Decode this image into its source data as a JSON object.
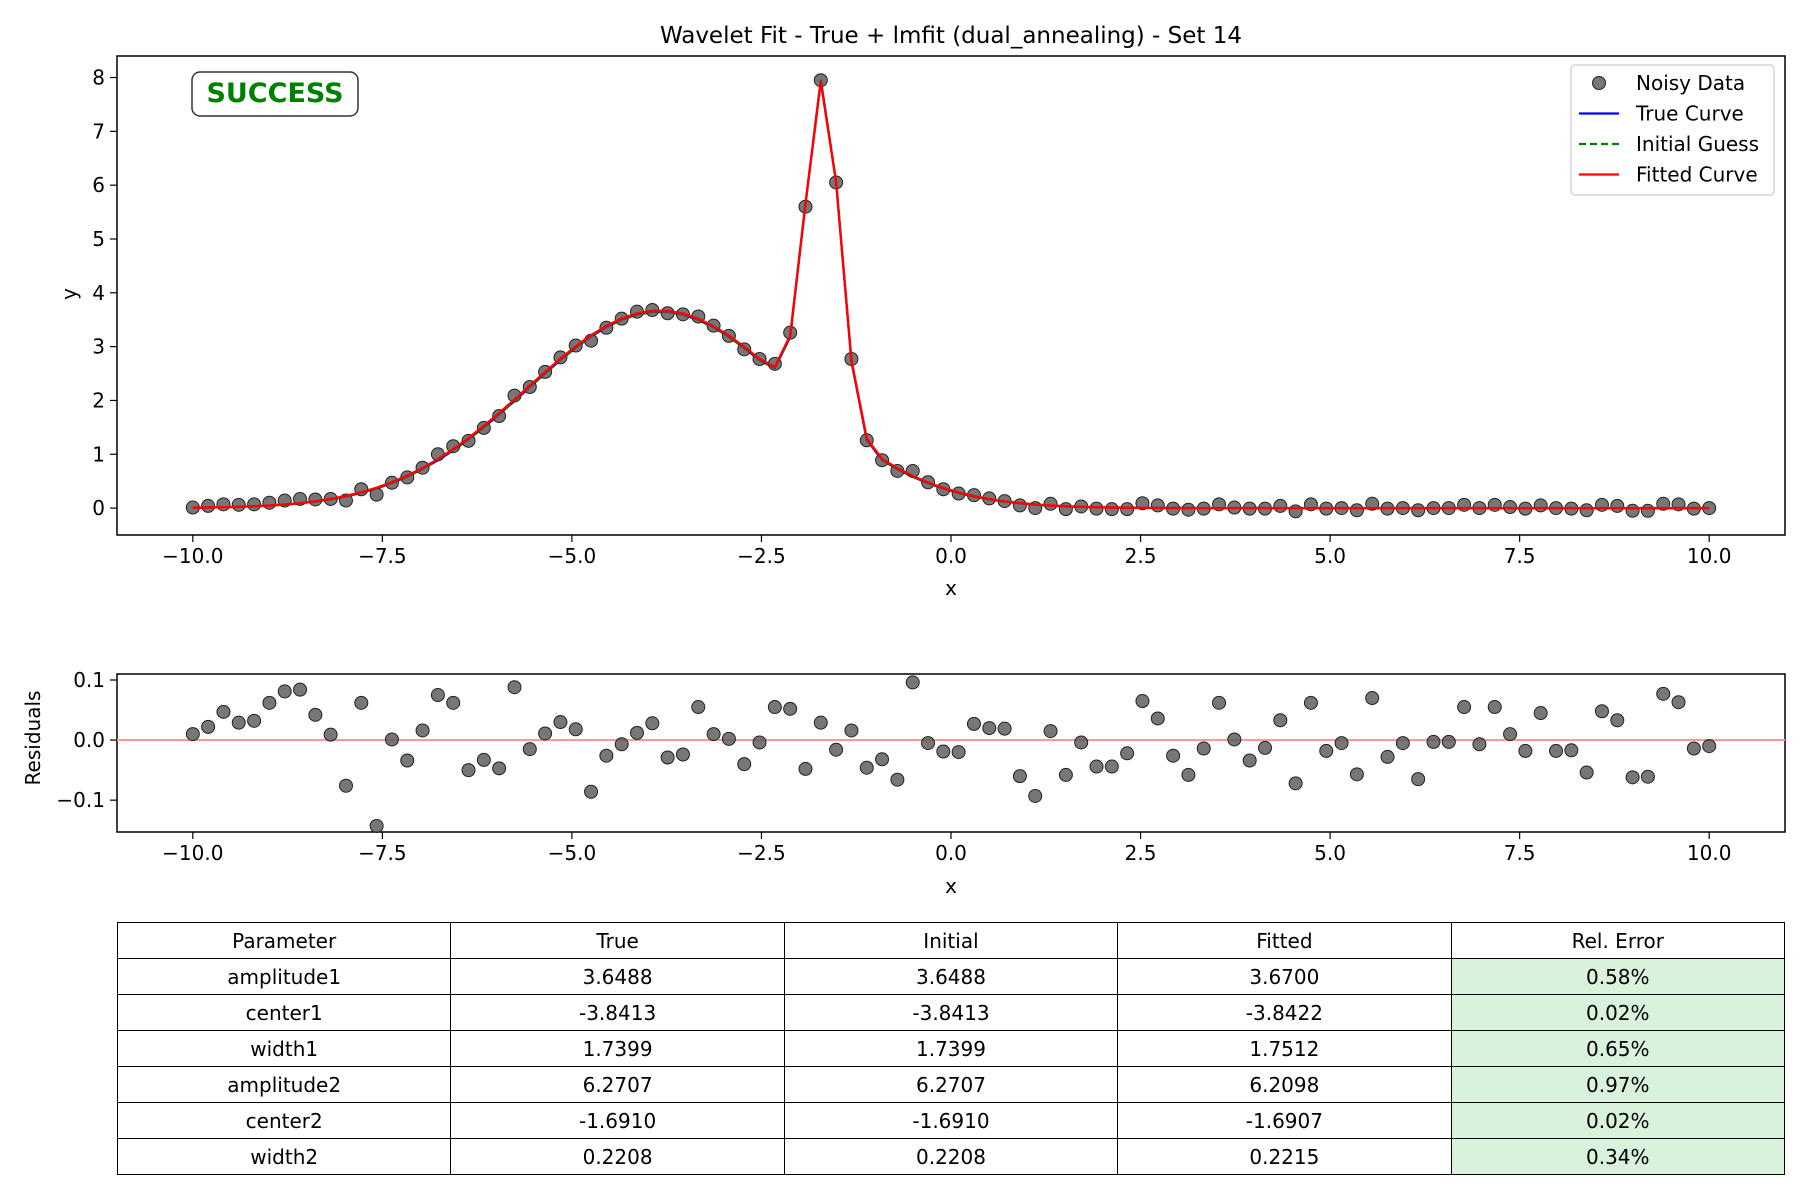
{
  "figure": {
    "status_badge": "SUCCESS",
    "status_color": "#008000"
  },
  "chart_data": [
    {
      "type": "scatter",
      "title": "Wavelet Fit - True + lmfit (dual_annealing) - Set 14",
      "xlabel": "x",
      "ylabel": "y",
      "xlim": [
        -11.0,
        11.0
      ],
      "ylim": [
        -0.5,
        8.4
      ],
      "xticks": [
        -10.0,
        -7.5,
        -5.0,
        -2.5,
        0.0,
        2.5,
        5.0,
        7.5,
        10.0
      ],
      "xtick_labels": [
        "−10.0",
        "−7.5",
        "−5.0",
        "−2.5",
        "0.0",
        "2.5",
        "5.0",
        "7.5",
        "10.0"
      ],
      "yticks": [
        0,
        1,
        2,
        3,
        4,
        5,
        6,
        7,
        8
      ],
      "ytick_labels": [
        "0",
        "1",
        "2",
        "3",
        "4",
        "5",
        "6",
        "7",
        "8"
      ],
      "legend_position": "top-right",
      "legend": [
        {
          "label": "Noisy Data",
          "style": "marker",
          "color": "#555555"
        },
        {
          "label": "True Curve",
          "style": "solid",
          "color": "#0000ff"
        },
        {
          "label": "Initial Guess",
          "style": "dashed",
          "color": "#008000"
        },
        {
          "label": "Fitted Curve",
          "style": "solid",
          "color": "#ff0000"
        }
      ],
      "model": {
        "true": {
          "amplitude1": 3.6488,
          "center1": -3.8413,
          "width1": 1.7399,
          "amplitude2": 6.2707,
          "center2": -1.691,
          "width2": 0.2208
        },
        "fitted": {
          "amplitude1": 3.67,
          "center1": -3.8422,
          "width1": 1.7512,
          "amplitude2": 6.2098,
          "center2": -1.6907,
          "width2": 0.2215
        }
      },
      "series": [
        {
          "name": "Noisy Data",
          "x_start": -10.0,
          "x_step": 0.20202,
          "y": [
            0.01,
            0.04,
            0.07,
            0.06,
            0.07,
            0.1,
            0.14,
            0.17,
            0.16,
            0.17,
            0.14,
            0.35,
            0.25,
            0.47,
            0.57,
            0.75,
            1.0,
            1.15,
            1.25,
            1.49,
            1.71,
            2.09,
            2.25,
            2.53,
            2.8,
            3.02,
            3.11,
            3.35,
            3.52,
            3.65,
            3.68,
            3.62,
            3.6,
            3.56,
            3.39,
            3.2,
            2.95,
            2.77,
            2.68,
            3.26,
            5.6,
            7.95,
            6.05,
            2.77,
            1.26,
            0.89,
            0.69,
            0.69,
            0.48,
            0.35,
            0.27,
            0.24,
            0.18,
            0.13,
            0.05,
            0.0,
            0.08,
            -0.02,
            0.03,
            -0.01,
            -0.02,
            -0.02,
            0.09,
            0.05,
            -0.01,
            -0.03,
            -0.01,
            0.07,
            0.01,
            -0.01,
            -0.01,
            0.04,
            -0.06,
            0.07,
            -0.01,
            0.0,
            -0.04,
            0.08,
            -0.01,
            0.0,
            -0.04,
            0.0,
            0.0,
            0.06,
            0.0,
            0.06,
            0.02,
            -0.01,
            0.05,
            0.0,
            -0.01,
            -0.04,
            0.06,
            0.04,
            -0.05,
            -0.05,
            0.08,
            0.07,
            -0.01,
            0.0
          ]
        }
      ]
    },
    {
      "type": "scatter",
      "title": "",
      "xlabel": "x",
      "ylabel": "Residuals",
      "xlim": [
        -11.0,
        11.0
      ],
      "ylim": [
        -0.153,
        0.11
      ],
      "xticks": [
        -10.0,
        -7.5,
        -5.0,
        -2.5,
        0.0,
        2.5,
        5.0,
        7.5,
        10.0
      ],
      "xtick_labels": [
        "−10.0",
        "−7.5",
        "−5.0",
        "−2.5",
        "0.0",
        "2.5",
        "5.0",
        "7.5",
        "10.0"
      ],
      "yticks": [
        0.1,
        0.0,
        -0.1
      ],
      "ytick_labels": [
        "0.1",
        "0.0",
        "−0.1"
      ],
      "zero_line_color": "#ff9999",
      "series": [
        {
          "name": "",
          "x_start": -10.0,
          "x_step": 0.20202,
          "y": [
            0.01,
            0.022,
            0.047,
            0.029,
            0.032,
            0.062,
            0.081,
            0.084,
            0.042,
            0.009,
            -0.076,
            0.062,
            -0.143,
            0.001,
            -0.034,
            0.016,
            0.075,
            0.062,
            -0.05,
            -0.033,
            -0.047,
            0.088,
            -0.015,
            0.011,
            0.03,
            0.018,
            -0.086,
            -0.026,
            -0.007,
            0.012,
            0.028,
            -0.029,
            -0.024,
            0.055,
            0.01,
            0.002,
            -0.04,
            -0.004,
            0.055,
            0.052,
            -0.048,
            0.029,
            -0.016,
            0.016,
            -0.046,
            -0.032,
            -0.066,
            0.096,
            -0.005,
            -0.019,
            -0.02,
            0.027,
            0.02,
            0.019,
            -0.06,
            -0.093,
            0.015,
            -0.058,
            -0.004,
            -0.044,
            -0.044,
            -0.022,
            0.065,
            0.036,
            -0.026,
            -0.058,
            -0.014,
            0.062,
            0.001,
            -0.034,
            -0.013,
            0.033,
            -0.072,
            0.062,
            -0.018,
            -0.005,
            -0.057,
            0.07,
            -0.028,
            -0.005,
            -0.065,
            -0.003,
            -0.003,
            0.055,
            -0.007,
            0.055,
            0.01,
            -0.018,
            0.045,
            -0.018,
            -0.017,
            -0.054,
            0.048,
            0.033,
            -0.062,
            -0.061,
            0.077,
            0.063,
            -0.014,
            -0.01
          ]
        }
      ]
    }
  ],
  "table": {
    "headers": [
      "Parameter",
      "True",
      "Initial",
      "Fitted",
      "Rel. Error"
    ],
    "rows": [
      [
        "amplitude1",
        "3.6488",
        "3.6488",
        "3.6700",
        "0.58%"
      ],
      [
        "center1",
        "-3.8413",
        "-3.8413",
        "-3.8422",
        "0.02%"
      ],
      [
        "width1",
        "1.7399",
        "1.7399",
        "1.7512",
        "0.65%"
      ],
      [
        "amplitude2",
        "6.2707",
        "6.2707",
        "6.2098",
        "0.97%"
      ],
      [
        "center2",
        "-1.6910",
        "-1.6910",
        "-1.6907",
        "0.02%"
      ],
      [
        "width2",
        "0.2208",
        "0.2208",
        "0.2215",
        "0.34%"
      ]
    ],
    "error_cell_color": "#d8f2dc"
  }
}
